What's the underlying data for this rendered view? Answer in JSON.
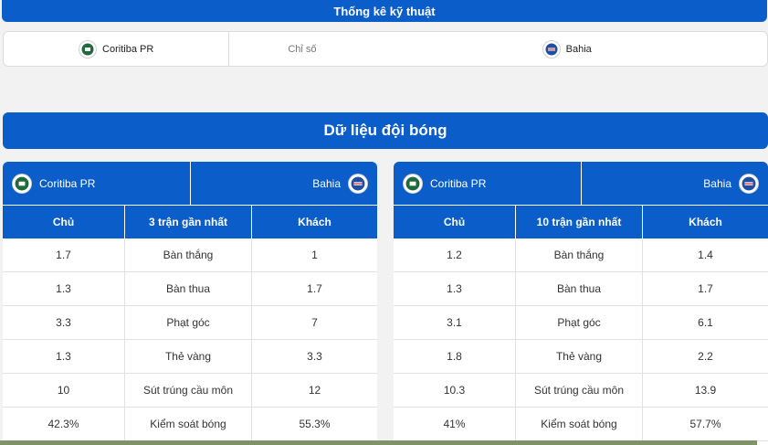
{
  "header": {
    "title": "Thống kê kỹ thuật"
  },
  "compare": {
    "home": "Coritiba PR",
    "middle": "Chỉ số",
    "away": "Bahia"
  },
  "section": {
    "title": "Dữ liệu đội bóng"
  },
  "colors": {
    "accent": "#0b5ec9",
    "home_logo": "#1f6a3a",
    "away_logo": "#1e4fa3"
  },
  "panels": [
    {
      "home": "Coritiba PR",
      "away": "Bahia",
      "headers": [
        "Chủ",
        "3 trận gần nhất",
        "Khách"
      ],
      "rows": [
        [
          "1.7",
          "Bàn thắng",
          "1"
        ],
        [
          "1.3",
          "Bàn thua",
          "1.7"
        ],
        [
          "3.3",
          "Phạt góc",
          "7"
        ],
        [
          "1.3",
          "Thẻ vàng",
          "3.3"
        ],
        [
          "10",
          "Sút trúng cầu môn",
          "12"
        ],
        [
          "42.3%",
          "Kiểm soát bóng",
          "55.3%"
        ]
      ]
    },
    {
      "home": "Coritiba PR",
      "away": "Bahia",
      "headers": [
        "Chủ",
        "10 trận gần nhất",
        "Khách"
      ],
      "rows": [
        [
          "1.2",
          "Bàn thắng",
          "1.4"
        ],
        [
          "1.3",
          "Bàn thua",
          "1.7"
        ],
        [
          "3.1",
          "Phạt góc",
          "6.1"
        ],
        [
          "1.8",
          "Thẻ vàng",
          "2.2"
        ],
        [
          "10.3",
          "Sút trúng cầu môn",
          "13.9"
        ],
        [
          "41%",
          "Kiểm soát bóng",
          "57.7%"
        ]
      ]
    }
  ]
}
